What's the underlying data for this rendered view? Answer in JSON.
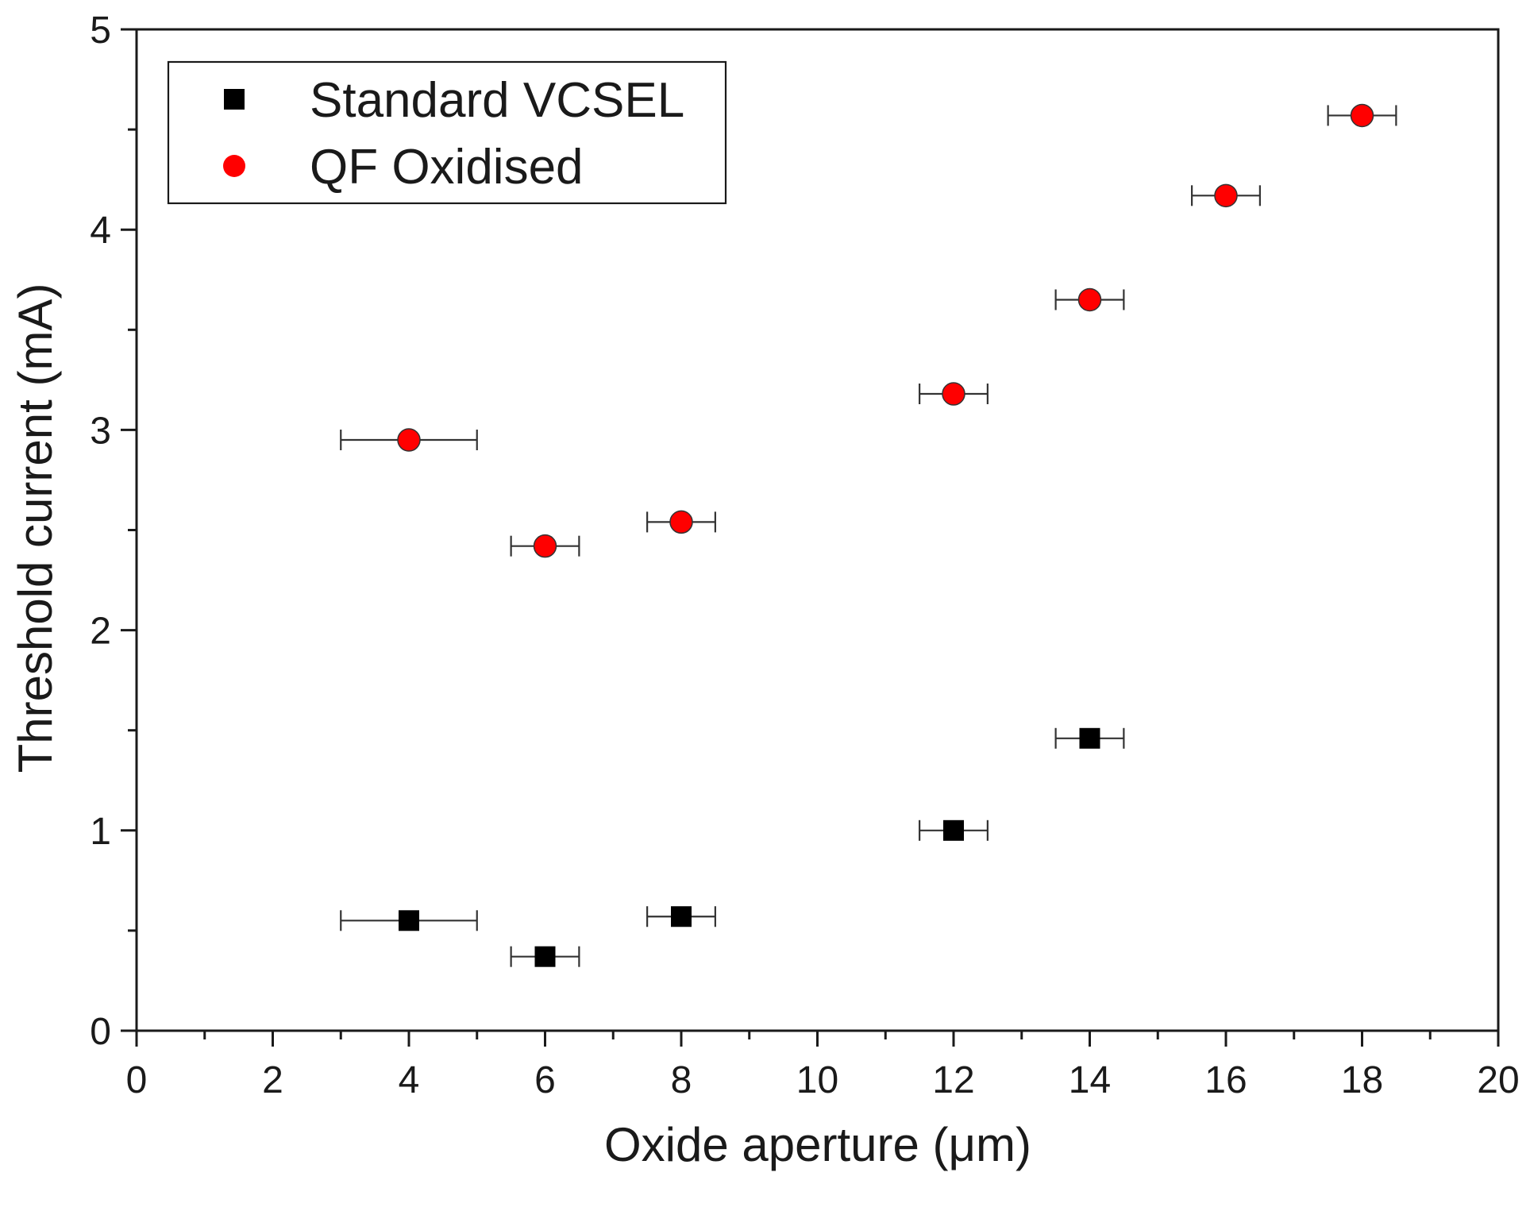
{
  "chart_data": {
    "type": "scatter",
    "title": "",
    "xlabel": "Oxide aperture (μm)",
    "ylabel": "Threshold current (mA)",
    "xlim": [
      0,
      20
    ],
    "ylim": [
      0,
      5
    ],
    "x_major_ticks": [
      0,
      2,
      4,
      6,
      8,
      10,
      12,
      14,
      16,
      18,
      20
    ],
    "x_tick_labels": [
      "0",
      "2",
      "4",
      "6",
      "8",
      "10",
      "12",
      "14",
      "16",
      "18",
      "20"
    ],
    "y_major_ticks": [
      0,
      1,
      2,
      3,
      4,
      5
    ],
    "y_tick_labels": [
      "0",
      "1",
      "2",
      "3",
      "4",
      "5"
    ],
    "grid": false,
    "legend_position": "top-left",
    "series": [
      {
        "name": "Standard VCSEL",
        "marker": "square",
        "color": "#000000",
        "points": [
          {
            "x": 4,
            "y": 0.55,
            "xerr": 1.0
          },
          {
            "x": 6,
            "y": 0.37,
            "xerr": 0.5
          },
          {
            "x": 8,
            "y": 0.57,
            "xerr": 0.5
          },
          {
            "x": 12,
            "y": 1.0,
            "xerr": 0.5
          },
          {
            "x": 14,
            "y": 1.46,
            "xerr": 0.5
          }
        ]
      },
      {
        "name": "QF Oxidised",
        "marker": "circle",
        "color": "#ff0000",
        "points": [
          {
            "x": 4,
            "y": 2.95,
            "xerr": 1.0
          },
          {
            "x": 6,
            "y": 2.42,
            "xerr": 0.5
          },
          {
            "x": 8,
            "y": 2.54,
            "xerr": 0.5
          },
          {
            "x": 12,
            "y": 3.18,
            "xerr": 0.5
          },
          {
            "x": 14,
            "y": 3.65,
            "xerr": 0.5
          },
          {
            "x": 16,
            "y": 4.17,
            "xerr": 0.5
          },
          {
            "x": 18,
            "y": 4.57,
            "xerr": 0.5
          }
        ]
      }
    ]
  }
}
